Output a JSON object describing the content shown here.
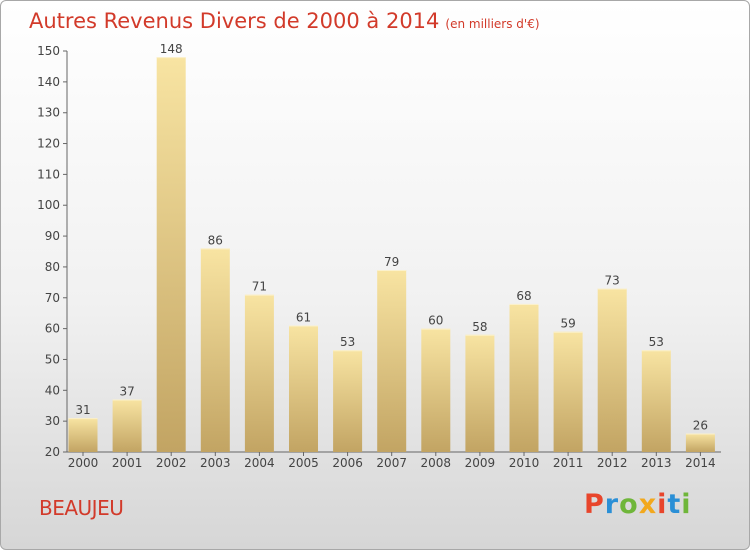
{
  "header": {
    "title": "Autres Revenus Divers de 2000 à 2014",
    "unit": "(en milliers d'€)"
  },
  "footer": {
    "place": "BEAUJEU",
    "logo_letters": [
      "P",
      "r",
      "o",
      "x",
      "i",
      "t",
      "i"
    ]
  },
  "colors": {
    "title": "#d23a2a",
    "bar_top": "#f8e4a2",
    "bar_bottom": "#c2a463",
    "logo": [
      "#e8452b",
      "#2a8fd6",
      "#6fb63a",
      "#f2a81d",
      "#e8452b",
      "#2a8fd6",
      "#6fb63a"
    ]
  },
  "chart_data": {
    "type": "bar",
    "title": "Autres Revenus Divers de 2000 à 2014",
    "xlabel": "",
    "ylabel": "",
    "categories": [
      "2000",
      "2001",
      "2002",
      "2003",
      "2004",
      "2005",
      "2006",
      "2007",
      "2008",
      "2009",
      "2010",
      "2011",
      "2012",
      "2013",
      "2014"
    ],
    "values": [
      31,
      37,
      148,
      86,
      71,
      61,
      53,
      79,
      60,
      58,
      68,
      59,
      73,
      53,
      26
    ],
    "ylim": [
      20,
      150
    ],
    "yticks": [
      20,
      30,
      40,
      50,
      60,
      70,
      80,
      90,
      100,
      110,
      120,
      130,
      140,
      150
    ],
    "grid": false,
    "legend": "none"
  }
}
